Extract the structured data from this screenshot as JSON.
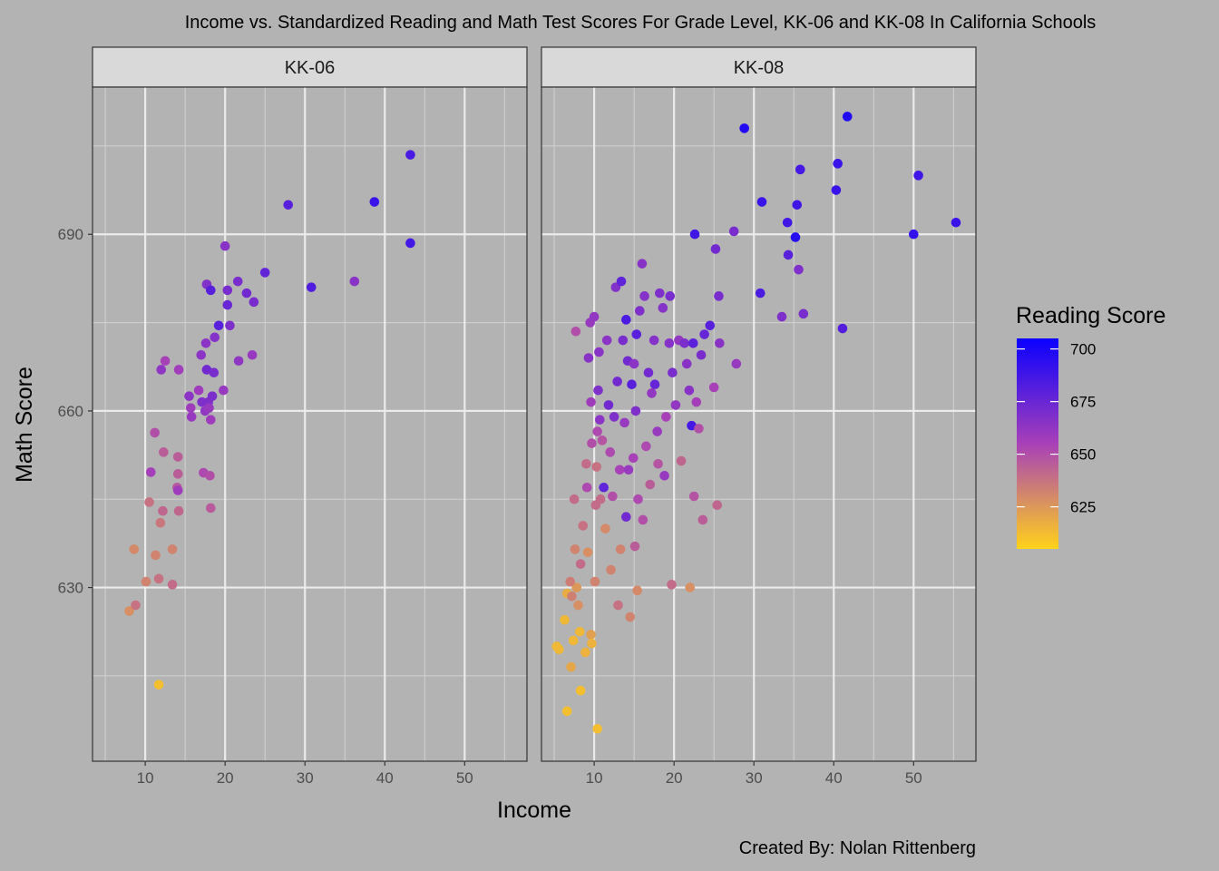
{
  "chart_data": {
    "type": "scatter",
    "title": "Income vs. Standardized Reading and Math Test Scores For Grade Level, KK-06 and KK-08 In California Schools",
    "caption": "Created By: Nolan Rittenberg",
    "xlabel": "Income",
    "ylabel": "Math Score",
    "xlim": [
      3.4,
      57.8
    ],
    "ylim": [
      600.5,
      715
    ],
    "x_ticks": [
      10,
      20,
      30,
      40,
      50
    ],
    "y_ticks": [
      630,
      660,
      690
    ],
    "grid": true,
    "color_scale": {
      "title": "Reading Score",
      "low_color": "#FFD21A",
      "mid_color": "#A840B8",
      "high_color": "#0A00FF",
      "domain": [
        605,
        705
      ],
      "ticks": [
        625,
        650,
        675,
        700
      ],
      "legend_position": "right"
    },
    "facets": [
      {
        "label": "KK-06",
        "points": [
          [
            8.0,
            626,
            628
          ],
          [
            8.8,
            627,
            638
          ],
          [
            8.6,
            636.5,
            630
          ],
          [
            10.1,
            631,
            632
          ],
          [
            10.5,
            644.5,
            638
          ],
          [
            11.3,
            635.5,
            632
          ],
          [
            11.7,
            631.5,
            638
          ],
          [
            11.9,
            641,
            636
          ],
          [
            12.2,
            643,
            642
          ],
          [
            12.3,
            653,
            645
          ],
          [
            13.4,
            636.5,
            632
          ],
          [
            13.4,
            630.5,
            640
          ],
          [
            14.0,
            647,
            647
          ],
          [
            14.2,
            643,
            642
          ],
          [
            14.1,
            652.2,
            645
          ],
          [
            14.1,
            649.3,
            645
          ],
          [
            14.1,
            646.5,
            658
          ],
          [
            10.7,
            649.6,
            656
          ],
          [
            11.2,
            656.3,
            650
          ],
          [
            11.7,
            613.5,
            612
          ],
          [
            12.0,
            667,
            663
          ],
          [
            12.5,
            668.5,
            655
          ],
          [
            14.2,
            667,
            657
          ],
          [
            15.5,
            662.5,
            664
          ],
          [
            15.7,
            660.5,
            658
          ],
          [
            15.8,
            659,
            660
          ],
          [
            16.7,
            663.5,
            658
          ],
          [
            17.0,
            669.5,
            664
          ],
          [
            17.1,
            661.5,
            668
          ],
          [
            17.3,
            649.5,
            652
          ],
          [
            17.5,
            660,
            662
          ],
          [
            17.6,
            671.5,
            664
          ],
          [
            17.7,
            681.5,
            667
          ],
          [
            17.7,
            667,
            672
          ],
          [
            17.9,
            661.5,
            668
          ],
          [
            18.0,
            660.5,
            660
          ],
          [
            18.1,
            649,
            650
          ],
          [
            18.2,
            643.5,
            646
          ],
          [
            18.2,
            658.5,
            658
          ],
          [
            18.2,
            680.5,
            680
          ],
          [
            18.4,
            662.5,
            669
          ],
          [
            18.6,
            666.5,
            670
          ],
          [
            18.7,
            672.5,
            666
          ],
          [
            19.2,
            674.5,
            680
          ],
          [
            19.8,
            663.5,
            660
          ],
          [
            20.0,
            688,
            665
          ],
          [
            20.3,
            680.5,
            670
          ],
          [
            20.3,
            678,
            675
          ],
          [
            20.6,
            674.5,
            668
          ],
          [
            21.6,
            682,
            670
          ],
          [
            21.7,
            668.5,
            663
          ],
          [
            22.7,
            680,
            672
          ],
          [
            23.4,
            669.5,
            660
          ],
          [
            23.6,
            678.5,
            670
          ],
          [
            25.0,
            683.5,
            677
          ],
          [
            27.9,
            695,
            680
          ],
          [
            30.8,
            681,
            683
          ],
          [
            36.2,
            682,
            665
          ],
          [
            38.7,
            695.5,
            690
          ],
          [
            43.2,
            703.5,
            685
          ],
          [
            43.2,
            688.5,
            687
          ]
        ]
      },
      {
        "label": "KK-08",
        "points": [
          [
            5.3,
            620,
            614
          ],
          [
            5.6,
            619.5,
            614
          ],
          [
            6.3,
            624.5,
            614
          ],
          [
            6.6,
            629,
            618
          ],
          [
            6.6,
            609,
            612
          ],
          [
            7.1,
            616.5,
            620
          ],
          [
            7.4,
            621,
            614
          ],
          [
            7.6,
            636.5,
            632
          ],
          [
            7.8,
            630,
            625
          ],
          [
            8.0,
            627,
            628
          ],
          [
            8.2,
            622.5,
            614
          ],
          [
            8.3,
            612.5,
            612
          ],
          [
            8.9,
            619,
            616
          ],
          [
            9.2,
            636,
            628
          ],
          [
            9.6,
            622,
            622
          ],
          [
            9.7,
            620.5,
            616
          ],
          [
            10.4,
            606,
            612
          ],
          [
            7.0,
            631,
            634
          ],
          [
            7.2,
            628.5,
            633
          ],
          [
            7.5,
            645,
            640
          ],
          [
            7.7,
            673.5,
            650
          ],
          [
            8.3,
            634,
            640
          ],
          [
            8.6,
            640.5,
            638
          ],
          [
            9.0,
            651,
            640
          ],
          [
            9.1,
            647,
            652
          ],
          [
            9.3,
            669,
            665
          ],
          [
            9.5,
            675,
            660
          ],
          [
            9.6,
            661.5,
            658
          ],
          [
            9.7,
            654.5,
            650
          ],
          [
            10.0,
            676,
            662
          ],
          [
            10.1,
            631,
            632
          ],
          [
            10.2,
            644,
            640
          ],
          [
            10.3,
            650.5,
            638
          ],
          [
            10.4,
            656.5,
            652
          ],
          [
            10.5,
            663.5,
            668
          ],
          [
            10.6,
            670,
            665
          ],
          [
            10.7,
            658.5,
            664
          ],
          [
            10.8,
            645,
            640
          ],
          [
            11.0,
            655,
            648
          ],
          [
            11.2,
            647,
            678
          ],
          [
            11.4,
            640,
            630
          ],
          [
            11.6,
            672,
            664
          ],
          [
            11.8,
            661,
            672
          ],
          [
            12.0,
            653,
            652
          ],
          [
            12.1,
            633,
            632
          ],
          [
            12.3,
            645.5,
            650
          ],
          [
            12.5,
            659,
            668
          ],
          [
            12.7,
            681,
            667
          ],
          [
            12.9,
            665,
            672
          ],
          [
            13.0,
            627,
            638
          ],
          [
            13.2,
            650,
            655
          ],
          [
            13.3,
            636.5,
            632
          ],
          [
            13.4,
            682,
            678
          ],
          [
            13.6,
            672,
            670
          ],
          [
            13.8,
            658,
            660
          ],
          [
            14.0,
            675.5,
            684
          ],
          [
            14.0,
            642,
            672
          ],
          [
            14.2,
            668.5,
            672
          ],
          [
            14.3,
            650,
            660
          ],
          [
            14.5,
            625,
            632
          ],
          [
            14.7,
            664.5,
            680
          ],
          [
            14.9,
            652,
            655
          ],
          [
            15.0,
            668,
            664
          ],
          [
            15.1,
            637,
            645
          ],
          [
            15.2,
            660,
            668
          ],
          [
            15.3,
            673,
            680
          ],
          [
            15.4,
            629.5,
            630
          ],
          [
            15.5,
            645,
            652
          ],
          [
            15.7,
            677,
            668
          ],
          [
            16.0,
            685,
            665
          ],
          [
            16.1,
            641.5,
            650
          ],
          [
            16.3,
            679.5,
            666
          ],
          [
            16.5,
            654,
            652
          ],
          [
            16.8,
            666.5,
            672
          ],
          [
            17.0,
            647.5,
            645
          ],
          [
            17.2,
            663,
            662
          ],
          [
            17.5,
            672,
            666
          ],
          [
            17.6,
            664.5,
            676
          ],
          [
            17.9,
            656.5,
            660
          ],
          [
            18.0,
            651,
            648
          ],
          [
            18.2,
            680,
            668
          ],
          [
            18.6,
            677.5,
            666
          ],
          [
            18.8,
            649,
            660
          ],
          [
            19.0,
            659,
            655
          ],
          [
            19.4,
            671.5,
            666
          ],
          [
            19.5,
            679.5,
            670
          ],
          [
            19.7,
            630.5,
            640
          ],
          [
            19.8,
            666.5,
            670
          ],
          [
            20.2,
            661,
            662
          ],
          [
            20.6,
            672,
            662
          ],
          [
            20.9,
            651.5,
            642
          ],
          [
            21.3,
            671.5,
            669
          ],
          [
            21.6,
            668,
            665
          ],
          [
            21.9,
            663.5,
            665
          ],
          [
            22.0,
            630,
            628
          ],
          [
            22.2,
            657.5,
            686
          ],
          [
            22.4,
            671.5,
            679
          ],
          [
            22.5,
            645.5,
            648
          ],
          [
            22.6,
            690,
            688
          ],
          [
            22.8,
            661.5,
            656
          ],
          [
            23.1,
            657,
            650
          ],
          [
            23.4,
            669.5,
            670
          ],
          [
            23.6,
            641.5,
            645
          ],
          [
            23.8,
            673,
            676
          ],
          [
            24.5,
            674.5,
            680
          ],
          [
            25.0,
            664,
            655
          ],
          [
            25.2,
            687.5,
            672
          ],
          [
            25.4,
            644,
            642
          ],
          [
            25.6,
            679.5,
            670
          ],
          [
            25.7,
            671.5,
            665
          ],
          [
            27.5,
            690.5,
            670
          ],
          [
            27.8,
            668,
            660
          ],
          [
            28.8,
            708,
            697
          ],
          [
            30.8,
            680,
            684
          ],
          [
            31.0,
            695.5,
            690
          ],
          [
            33.5,
            676,
            668
          ],
          [
            34.2,
            692,
            688
          ],
          [
            34.3,
            686.5,
            680
          ],
          [
            35.2,
            689.5,
            696
          ],
          [
            35.4,
            695,
            688
          ],
          [
            35.6,
            684,
            668
          ],
          [
            35.8,
            701,
            686
          ],
          [
            36.2,
            676.5,
            670
          ],
          [
            40.3,
            697.5,
            690
          ],
          [
            40.5,
            702,
            690
          ],
          [
            41.1,
            674,
            682
          ],
          [
            41.7,
            710,
            698
          ],
          [
            50.0,
            690,
            692
          ],
          [
            50.6,
            700,
            688
          ],
          [
            55.3,
            692,
            690
          ]
        ]
      }
    ]
  }
}
